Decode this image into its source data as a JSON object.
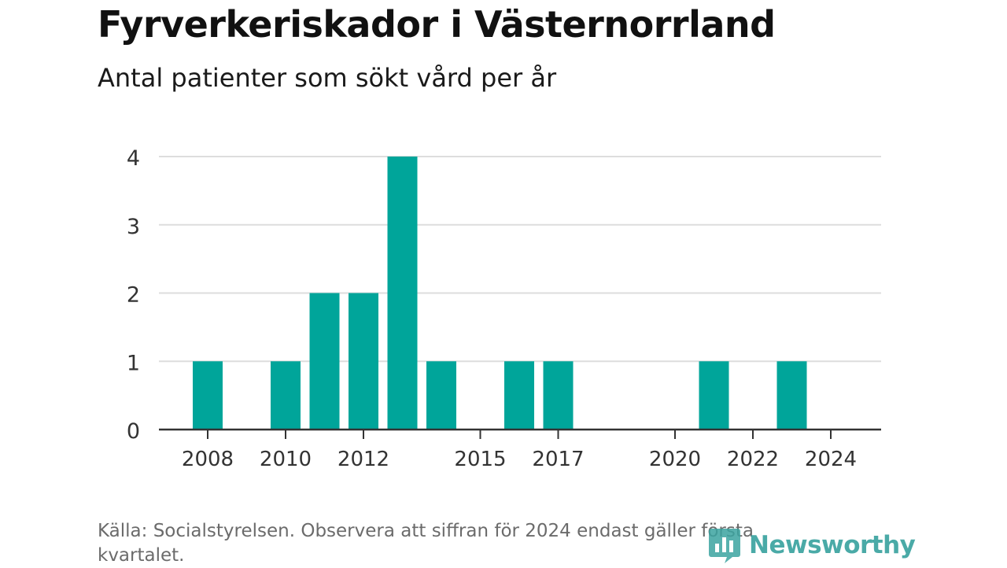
{
  "chart_data": {
    "type": "bar",
    "title": "Fyrverkeriskador i Västernorrland",
    "subtitle": "Antal patienter som sökt vård per år",
    "categories": [
      "2008",
      "2009",
      "2010",
      "2011",
      "2012",
      "2013",
      "2014",
      "2015",
      "2016",
      "2017",
      "2018",
      "2019",
      "2020",
      "2021",
      "2022",
      "2023",
      "2024"
    ],
    "values": [
      1,
      0,
      1,
      2,
      2,
      4,
      1,
      0,
      1,
      1,
      0,
      0,
      0,
      1,
      0,
      1,
      0
    ],
    "x_tick_labels": [
      "2008",
      "2010",
      "2012",
      "2015",
      "2017",
      "2020",
      "2022",
      "2024"
    ],
    "y_ticks": [
      0,
      1,
      2,
      3,
      4
    ],
    "ylim": [
      0,
      4
    ],
    "xlabel": "",
    "ylabel": "",
    "grid": true,
    "bar_color": "#00a59a"
  },
  "source": "Källa: Socialstyrelsen. Observera att siffran för 2024 endast gäller första kvartalet.",
  "brand": {
    "name": "Newsworthy",
    "color": "#3ba3a0"
  }
}
